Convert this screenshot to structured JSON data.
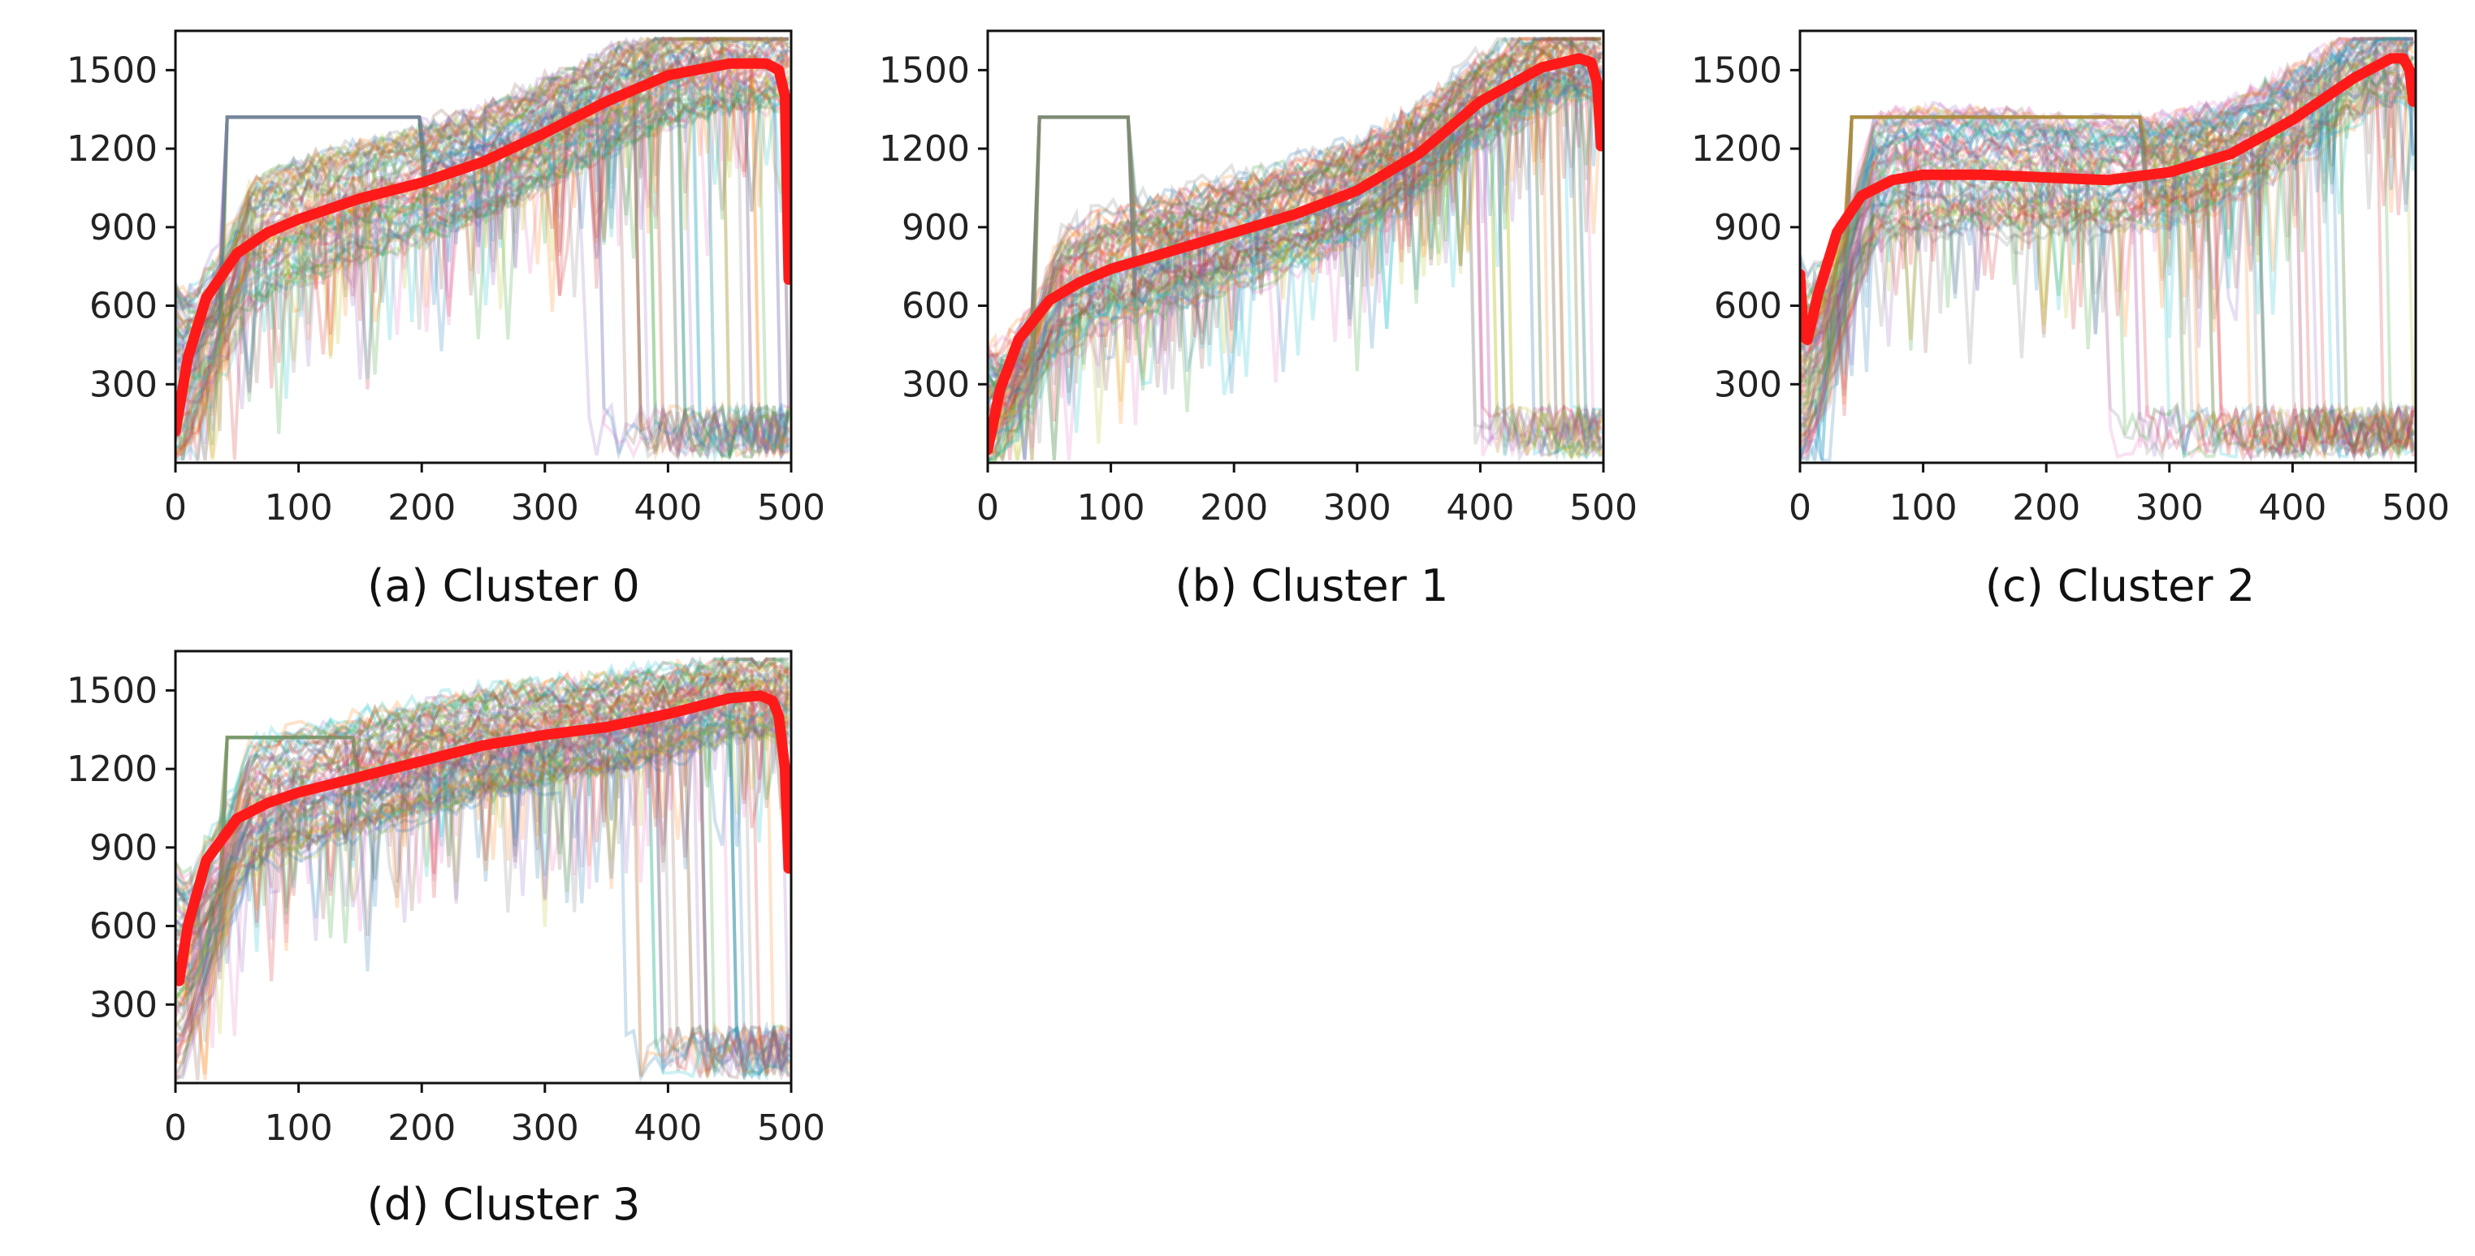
{
  "figure": {
    "background": "#ffffff"
  },
  "chart_data": [
    {
      "type": "line",
      "id": "cluster-0",
      "caption": "(a) Cluster 0",
      "xlim": [
        0,
        500
      ],
      "ylim": [
        0,
        1650
      ],
      "xticks": [
        0,
        100,
        200,
        300,
        400,
        500
      ],
      "yticks": [
        300,
        600,
        900,
        1200,
        1500
      ],
      "xtick_labels": [
        "0",
        "100",
        "200",
        "300",
        "400",
        "500"
      ],
      "ytick_labels": [
        "300",
        "600",
        "900",
        "1200",
        "1500"
      ],
      "mean_color": "#ff1a1a",
      "mean": {
        "x": [
          0,
          10,
          25,
          50,
          75,
          100,
          150,
          200,
          250,
          300,
          350,
          400,
          450,
          480,
          490,
          495,
          498
        ],
        "y": [
          120,
          400,
          630,
          800,
          880,
          930,
          1010,
          1070,
          1150,
          1260,
          1380,
          1480,
          1525,
          1525,
          1500,
          1400,
          700
        ]
      },
      "spread": {
        "base": [
          0,
          150,
          450,
          700
        ],
        "plateau": 1380,
        "plateau_until": 200,
        "top": 1620,
        "dropout_after": 330
      }
    },
    {
      "type": "line",
      "id": "cluster-1",
      "caption": "(b) Cluster 1",
      "xlim": [
        0,
        500
      ],
      "ylim": [
        0,
        1650
      ],
      "xticks": [
        0,
        100,
        200,
        300,
        400,
        500
      ],
      "yticks": [
        300,
        600,
        900,
        1200,
        1500
      ],
      "xtick_labels": [
        "0",
        "100",
        "200",
        "300",
        "400",
        "500"
      ],
      "ytick_labels": [
        "300",
        "600",
        "900",
        "1200",
        "1500"
      ],
      "mean_color": "#ff1a1a",
      "mean": {
        "x": [
          0,
          10,
          25,
          50,
          75,
          100,
          150,
          200,
          250,
          300,
          350,
          400,
          450,
          480,
          490,
          495,
          498
        ],
        "y": [
          50,
          280,
          470,
          620,
          690,
          740,
          810,
          880,
          950,
          1040,
          1180,
          1380,
          1510,
          1545,
          1530,
          1450,
          1210
        ]
      },
      "spread": {
        "base": [
          0,
          80,
          250,
          450
        ],
        "plateau": 1380,
        "plateau_until": 120,
        "top": 1620,
        "dropout_after": 390
      }
    },
    {
      "type": "line",
      "id": "cluster-2",
      "caption": "(c) Cluster 2",
      "xlim": [
        0,
        500
      ],
      "ylim": [
        0,
        1650
      ],
      "xticks": [
        0,
        100,
        200,
        300,
        400,
        500
      ],
      "yticks": [
        300,
        600,
        900,
        1200,
        1500
      ],
      "xtick_labels": [
        "0",
        "100",
        "200",
        "300",
        "400",
        "500"
      ],
      "ytick_labels": [
        "300",
        "600",
        "900",
        "1200",
        "1500"
      ],
      "mean_color": "#ff1a1a",
      "mean": {
        "x": [
          0,
          3,
          6,
          15,
          30,
          50,
          75,
          100,
          150,
          200,
          250,
          300,
          350,
          400,
          450,
          480,
          490,
          495,
          498
        ],
        "y": [
          720,
          480,
          470,
          650,
          880,
          1020,
          1080,
          1100,
          1100,
          1090,
          1080,
          1110,
          1180,
          1310,
          1470,
          1545,
          1545,
          1500,
          1380
        ]
      },
      "spread": {
        "base": [
          0,
          200,
          500,
          800
        ],
        "plateau": 1380,
        "plateau_until": 280,
        "top": 1620,
        "dropout_after": 240
      }
    },
    {
      "type": "line",
      "id": "cluster-3",
      "caption": "(d) Cluster 3",
      "xlim": [
        0,
        500
      ],
      "ylim": [
        0,
        1650
      ],
      "xticks": [
        0,
        100,
        200,
        300,
        400,
        500
      ],
      "yticks": [
        300,
        600,
        900,
        1200,
        1500
      ],
      "xtick_labels": [
        "0",
        "100",
        "200",
        "300",
        "400",
        "500"
      ],
      "ytick_labels": [
        "300",
        "600",
        "900",
        "1200",
        "1500"
      ],
      "mean_color": "#ff1a1a",
      "mean": {
        "x": [
          0,
          3,
          10,
          25,
          50,
          75,
          100,
          150,
          200,
          250,
          300,
          350,
          400,
          450,
          475,
          485,
          490,
          495,
          498
        ],
        "y": [
          400,
          390,
          600,
          850,
          1010,
          1070,
          1110,
          1170,
          1230,
          1290,
          1330,
          1360,
          1410,
          1470,
          1480,
          1460,
          1400,
          1200,
          820
        ]
      },
      "spread": {
        "base": [
          0,
          250,
          550,
          850
        ],
        "plateau": 1380,
        "plateau_until": 150,
        "top": 1620,
        "dropout_after": 360
      }
    }
  ]
}
